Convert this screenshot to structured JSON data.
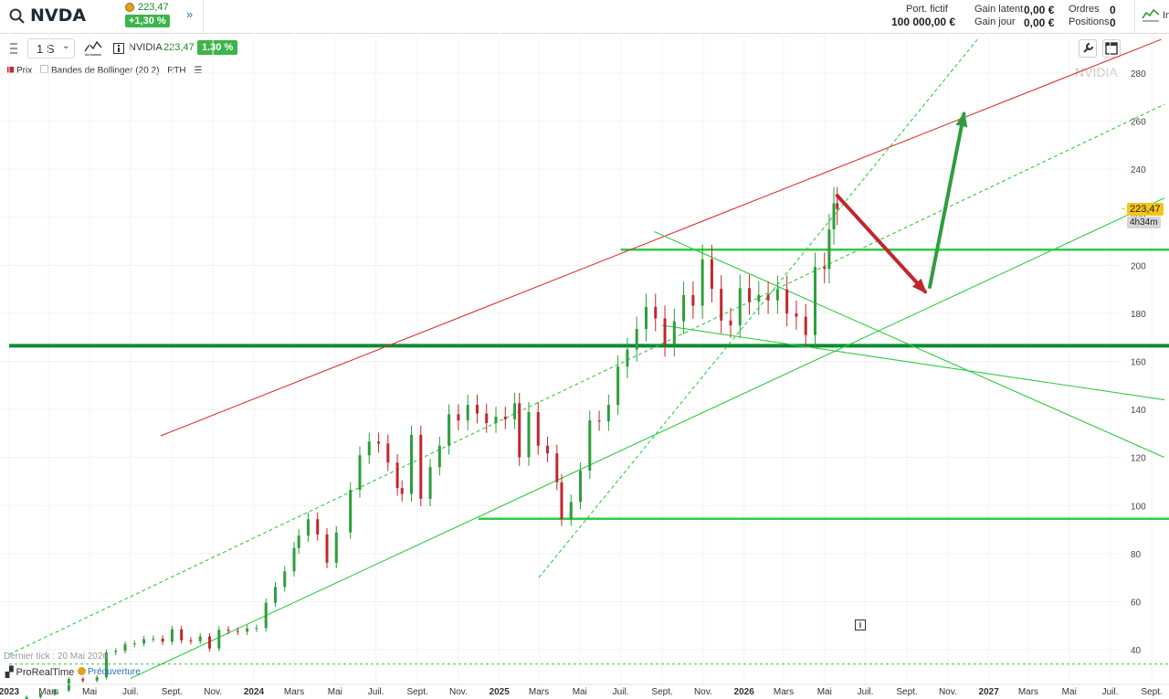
{
  "header": {
    "symbol": "NVDA",
    "quote_price": "223,47",
    "quote_change": "+1,30 %",
    "portfolio_label": "Port. fictif",
    "portfolio_value": "100 000,00 €",
    "unrealized_label": "Gain latent",
    "unrealized_value": "0,00 €",
    "day_gain_label": "Gain jour",
    "day_gain_value": "0,00 €",
    "orders_label": "Ordres",
    "orders_value": "0",
    "positions_label": "Positions",
    "positions_value": "0",
    "account_label": "In"
  },
  "toolbar": {
    "timeframe": "1 S",
    "instrument": "NVIDIA",
    "price": "223,47",
    "change": "1.30 %"
  },
  "legend": {
    "price_label": "Prix",
    "bollinger_label": "Bandes de Bollinger (20 2)",
    "rth_label": "RTH"
  },
  "watermark": "NVIDIA",
  "price_tag": "223,47",
  "time_tag": "4h34m",
  "footer": {
    "last_tick": "Dernier tick : 20 Mai 2026",
    "logo": "ProRealTime",
    "session": "Préouverture"
  },
  "colors": {
    "up": "#2e9e3c",
    "down": "#c2272d",
    "support": "#2ecc40",
    "support_strong": "#0c8a33",
    "resistance": "#e03131",
    "price_tag": "#f5c518"
  },
  "chart_data": {
    "type": "candlestick",
    "title": "",
    "xlabel": "",
    "ylabel": "",
    "ylim": [
      30,
      290
    ],
    "yticks": [
      40,
      60,
      80,
      100,
      120,
      140,
      160,
      180,
      200,
      220,
      240,
      260,
      280
    ],
    "x_tick_labels": [
      {
        "label": "2023",
        "date": "2023-01-01",
        "bold": true
      },
      {
        "label": "Mars",
        "date": "2023-03-01"
      },
      {
        "label": "Mai",
        "date": "2023-05-01"
      },
      {
        "label": "Juil.",
        "date": "2023-07-01"
      },
      {
        "label": "Sept.",
        "date": "2023-09-01"
      },
      {
        "label": "Nov.",
        "date": "2023-11-01"
      },
      {
        "label": "2024",
        "date": "2024-01-01",
        "bold": true
      },
      {
        "label": "Mars",
        "date": "2024-03-01"
      },
      {
        "label": "Mai",
        "date": "2024-05-01"
      },
      {
        "label": "Juil.",
        "date": "2024-07-01"
      },
      {
        "label": "Sept.",
        "date": "2024-09-01"
      },
      {
        "label": "Nov.",
        "date": "2024-11-01"
      },
      {
        "label": "2025",
        "date": "2025-01-01",
        "bold": true
      },
      {
        "label": "Mars",
        "date": "2025-03-01"
      },
      {
        "label": "Mai",
        "date": "2025-05-01"
      },
      {
        "label": "Juil.",
        "date": "2025-07-01"
      },
      {
        "label": "Sept.",
        "date": "2025-09-01"
      },
      {
        "label": "Nov.",
        "date": "2025-11-01"
      },
      {
        "label": "2026",
        "date": "2026-01-01",
        "bold": true
      },
      {
        "label": "Mars",
        "date": "2026-03-01"
      },
      {
        "label": "Mai",
        "date": "2026-05-01"
      },
      {
        "label": "Juil.",
        "date": "2026-07-01"
      },
      {
        "label": "Sept.",
        "date": "2026-09-01"
      },
      {
        "label": "Nov.",
        "date": "2026-11-01"
      },
      {
        "label": "2027",
        "date": "2027-01-01",
        "bold": true
      },
      {
        "label": "Mars",
        "date": "2027-03-01"
      },
      {
        "label": "Mai",
        "date": "2027-05-01"
      },
      {
        "label": "Juil.",
        "date": "2027-07-01"
      },
      {
        "label": "Sept.",
        "date": "2027-09-01"
      }
    ],
    "x_range": [
      "2023-01-01",
      "2027-09-20"
    ],
    "weekly_closes": [
      {
        "date": "2023-01-06",
        "close": 14.9
      },
      {
        "date": "2023-01-27",
        "close": 20.3
      },
      {
        "date": "2023-02-17",
        "close": 21.4
      },
      {
        "date": "2023-03-10",
        "close": 23.0
      },
      {
        "date": "2023-03-31",
        "close": 27.8
      },
      {
        "date": "2023-04-21",
        "close": 27.1
      },
      {
        "date": "2023-05-12",
        "close": 28.5
      },
      {
        "date": "2023-05-26",
        "close": 38.9
      },
      {
        "date": "2023-06-09",
        "close": 39.5
      },
      {
        "date": "2023-06-23",
        "close": 42.2
      },
      {
        "date": "2023-07-07",
        "close": 42.6
      },
      {
        "date": "2023-07-21",
        "close": 44.4
      },
      {
        "date": "2023-08-04",
        "close": 44.6
      },
      {
        "date": "2023-08-18",
        "close": 43.3
      },
      {
        "date": "2023-09-01",
        "close": 48.5
      },
      {
        "date": "2023-09-15",
        "close": 43.9
      },
      {
        "date": "2023-09-29",
        "close": 43.5
      },
      {
        "date": "2023-10-13",
        "close": 45.5
      },
      {
        "date": "2023-10-27",
        "close": 40.5
      },
      {
        "date": "2023-11-10",
        "close": 48.3
      },
      {
        "date": "2023-11-24",
        "close": 47.8
      },
      {
        "date": "2023-12-08",
        "close": 47.5
      },
      {
        "date": "2023-12-22",
        "close": 48.8
      },
      {
        "date": "2024-01-05",
        "close": 49.0
      },
      {
        "date": "2024-01-19",
        "close": 59.5
      },
      {
        "date": "2024-02-02",
        "close": 66.1
      },
      {
        "date": "2024-02-16",
        "close": 72.6
      },
      {
        "date": "2024-03-01",
        "close": 82.3
      },
      {
        "date": "2024-03-08",
        "close": 87.5
      },
      {
        "date": "2024-03-22",
        "close": 94.3
      },
      {
        "date": "2024-04-05",
        "close": 88.0
      },
      {
        "date": "2024-04-19",
        "close": 76.2
      },
      {
        "date": "2024-05-03",
        "close": 88.8
      },
      {
        "date": "2024-05-24",
        "close": 106.5
      },
      {
        "date": "2024-06-07",
        "close": 120.9
      },
      {
        "date": "2024-06-21",
        "close": 126.6
      },
      {
        "date": "2024-07-05",
        "close": 125.8
      },
      {
        "date": "2024-07-19",
        "close": 117.9
      },
      {
        "date": "2024-08-02",
        "close": 107.3
      },
      {
        "date": "2024-08-09",
        "close": 104.8
      },
      {
        "date": "2024-08-23",
        "close": 129.4
      },
      {
        "date": "2024-09-06",
        "close": 102.8
      },
      {
        "date": "2024-09-20",
        "close": 116.0
      },
      {
        "date": "2024-10-04",
        "close": 124.9
      },
      {
        "date": "2024-10-18",
        "close": 138.0
      },
      {
        "date": "2024-11-01",
        "close": 135.4
      },
      {
        "date": "2024-11-15",
        "close": 141.9
      },
      {
        "date": "2024-11-29",
        "close": 138.3
      },
      {
        "date": "2024-12-13",
        "close": 134.3
      },
      {
        "date": "2024-12-27",
        "close": 137.0
      },
      {
        "date": "2025-01-10",
        "close": 135.9
      },
      {
        "date": "2025-01-24",
        "close": 142.6
      },
      {
        "date": "2025-01-31",
        "close": 120.1
      },
      {
        "date": "2025-02-14",
        "close": 138.9
      },
      {
        "date": "2025-02-28",
        "close": 124.9
      },
      {
        "date": "2025-03-14",
        "close": 121.7
      },
      {
        "date": "2025-03-28",
        "close": 109.7
      },
      {
        "date": "2025-04-04",
        "close": 94.3
      },
      {
        "date": "2025-04-18",
        "close": 101.5
      },
      {
        "date": "2025-05-02",
        "close": 114.5
      },
      {
        "date": "2025-05-16",
        "close": 135.4
      },
      {
        "date": "2025-05-30",
        "close": 135.1
      },
      {
        "date": "2025-06-13",
        "close": 141.9
      },
      {
        "date": "2025-06-27",
        "close": 157.8
      },
      {
        "date": "2025-07-11",
        "close": 164.9
      },
      {
        "date": "2025-07-25",
        "close": 173.5
      },
      {
        "date": "2025-08-08",
        "close": 182.7
      },
      {
        "date": "2025-08-22",
        "close": 177.9
      },
      {
        "date": "2025-09-05",
        "close": 167.0
      },
      {
        "date": "2025-09-19",
        "close": 176.7
      },
      {
        "date": "2025-10-03",
        "close": 187.6
      },
      {
        "date": "2025-10-17",
        "close": 183.2
      },
      {
        "date": "2025-10-31",
        "close": 202.5
      },
      {
        "date": "2025-11-14",
        "close": 190.2
      },
      {
        "date": "2025-11-28",
        "close": 177.0
      },
      {
        "date": "2025-12-12",
        "close": 175.0
      },
      {
        "date": "2025-12-26",
        "close": 190.5
      },
      {
        "date": "2026-01-09",
        "close": 184.9
      },
      {
        "date": "2026-01-23",
        "close": 187.7
      },
      {
        "date": "2026-02-06",
        "close": 185.4
      },
      {
        "date": "2026-02-20",
        "close": 190.0
      },
      {
        "date": "2026-03-06",
        "close": 180.0
      },
      {
        "date": "2026-03-20",
        "close": 178.6
      },
      {
        "date": "2026-04-03",
        "close": 171.0
      },
      {
        "date": "2026-04-17",
        "close": 199.3
      },
      {
        "date": "2026-05-01",
        "close": 198.5
      },
      {
        "date": "2026-05-08",
        "close": 215.0
      },
      {
        "date": "2026-05-15",
        "close": 225.8
      },
      {
        "date": "2026-05-20",
        "close": 223.47
      }
    ],
    "horizontal_levels": [
      {
        "price": 206.5,
        "from": "2025-07-01",
        "role": "support"
      },
      {
        "price": 166.5,
        "from": "2023-01-01",
        "role": "support_strong"
      },
      {
        "price": 94.5,
        "from": "2024-12-01",
        "role": "support"
      },
      {
        "price": 34.0,
        "from": "2023-01-01",
        "role": "support_dotted"
      }
    ],
    "trendlines": [
      {
        "role": "resistance",
        "from": {
          "date": "2023-08-15",
          "price": 129
        },
        "to": {
          "date": "2027-09-15",
          "price": 294
        }
      },
      {
        "role": "support",
        "from": {
          "date": "2023-07-01",
          "price": 28
        },
        "to": {
          "date": "2027-09-20",
          "price": 228
        }
      },
      {
        "role": "support_dashed",
        "from": {
          "date": "2023-01-01",
          "price": 38
        },
        "to": {
          "date": "2027-09-20",
          "price": 267
        }
      },
      {
        "role": "support_dashed",
        "from": {
          "date": "2025-03-01",
          "price": 70
        },
        "to": {
          "date": "2026-12-15",
          "price": 294
        }
      },
      {
        "role": "support",
        "from": {
          "date": "2025-08-20",
          "price": 214
        },
        "to": {
          "date": "2027-09-20",
          "price": 120
        }
      },
      {
        "role": "support",
        "from": {
          "date": "2025-09-01",
          "price": 175
        },
        "to": {
          "date": "2027-09-20",
          "price": 144
        }
      }
    ],
    "annotations": [
      {
        "type": "arrow",
        "color": "down",
        "from": {
          "date": "2026-05-20",
          "price": 229
        },
        "to": {
          "date": "2026-09-28",
          "price": 189
        }
      },
      {
        "type": "arrow",
        "color": "up",
        "from": {
          "date": "2026-10-05",
          "price": 191
        },
        "to": {
          "date": "2026-11-25",
          "price": 263
        }
      }
    ],
    "last_price": 223.47,
    "grid": true
  }
}
